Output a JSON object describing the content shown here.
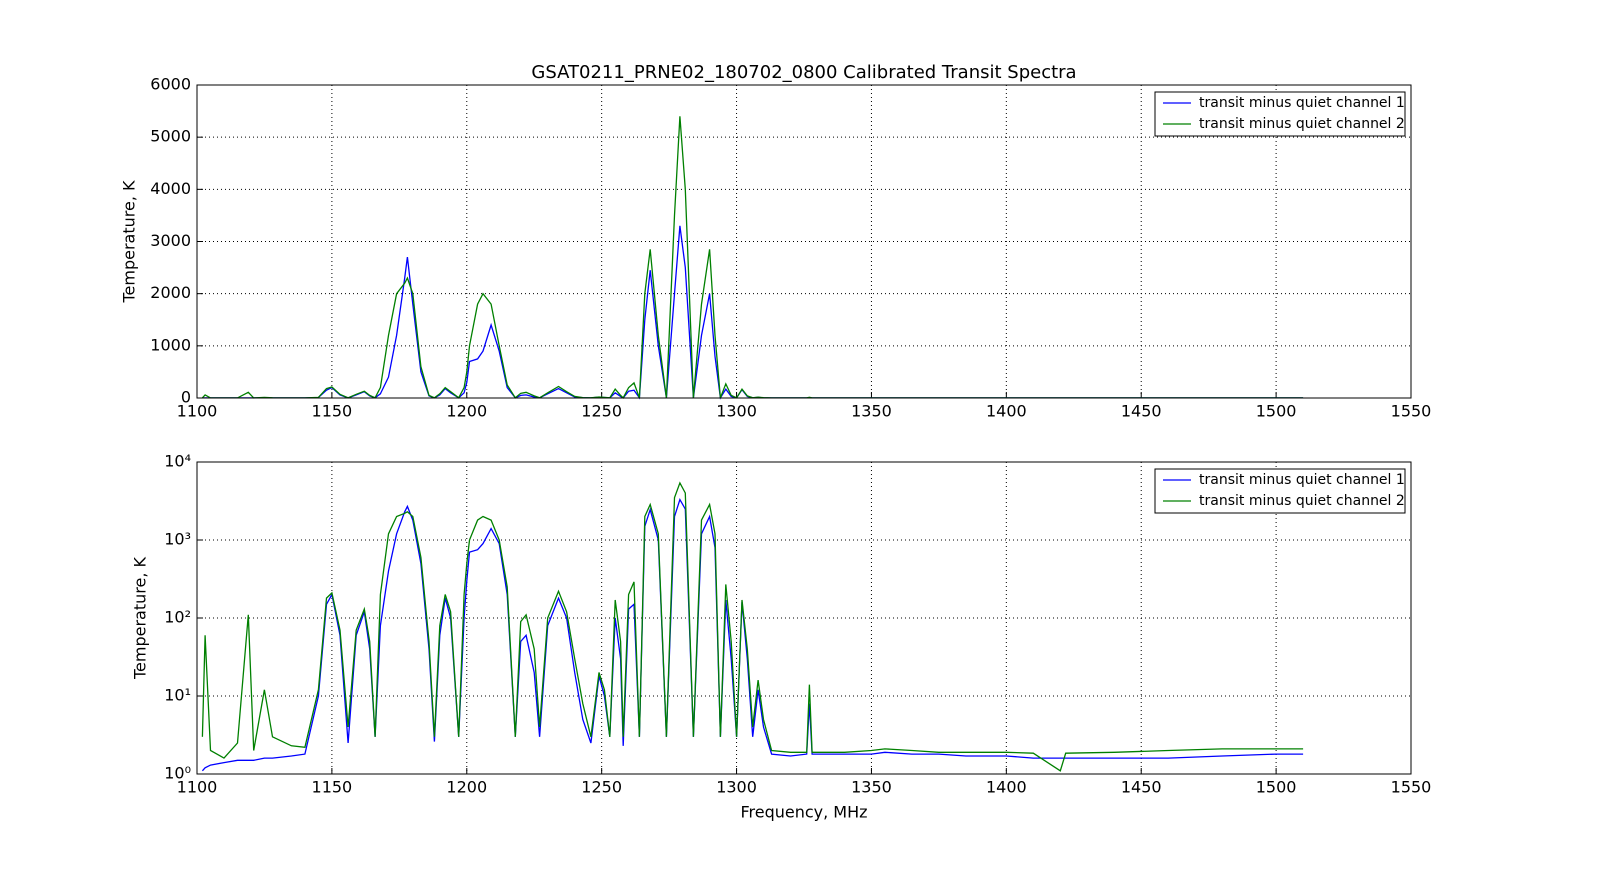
{
  "chart_data": [
    {
      "type": "line",
      "title": "GSAT0211_PRNE02_180702_0800 Calibrated Transit Spectra",
      "ylabel": "Temperature, K",
      "yscale": "linear",
      "grid": true,
      "legend": "upper right",
      "xlim": [
        1100,
        1550
      ],
      "xticks": [
        1100,
        1150,
        1200,
        1250,
        1300,
        1350,
        1400,
        1450,
        1500,
        1550
      ],
      "ylim": [
        0,
        6000
      ],
      "yticks": [
        0,
        1000,
        2000,
        3000,
        4000,
        5000,
        6000
      ],
      "x": [
        1102,
        1103,
        1105,
        1110,
        1115,
        1119,
        1121,
        1125,
        1128,
        1135,
        1140,
        1145,
        1148,
        1150,
        1153,
        1156,
        1159,
        1162,
        1164,
        1166,
        1168,
        1171,
        1174,
        1177,
        1178,
        1180,
        1183,
        1186,
        1188,
        1190,
        1192,
        1194,
        1197,
        1199,
        1200,
        1201,
        1204,
        1206,
        1209,
        1212,
        1215,
        1218,
        1220,
        1222,
        1225,
        1227,
        1230,
        1234,
        1237,
        1240,
        1243,
        1246,
        1249,
        1251,
        1253,
        1255,
        1257,
        1258,
        1260,
        1262,
        1264,
        1266,
        1268,
        1271,
        1274,
        1277,
        1279,
        1281,
        1284,
        1287,
        1290,
        1292,
        1294,
        1296,
        1298,
        1300,
        1302,
        1304,
        1306,
        1308,
        1310,
        1313,
        1320,
        1326,
        1327,
        1328,
        1340,
        1350,
        1355,
        1365,
        1375,
        1385,
        1400,
        1410,
        1420,
        1422,
        1440,
        1460,
        1480,
        1500,
        1510
      ],
      "series": [
        {
          "name": "transit minus quiet channel 1",
          "color": "#0000ff",
          "values": [
            1.1,
            1.2,
            1.3,
            1.4,
            1.5,
            1.5,
            1.5,
            1.6,
            1.6,
            1.7,
            1.8,
            10,
            150,
            200,
            60,
            2.5,
            60,
            120,
            40,
            3,
            80,
            400,
            1200,
            2300,
            2700,
            1800,
            500,
            40,
            2.6,
            60,
            180,
            100,
            3,
            100,
            300,
            700,
            750,
            900,
            1400,
            900,
            200,
            3,
            50,
            60,
            20,
            3,
            80,
            180,
            100,
            20,
            5,
            2.5,
            18,
            10,
            3,
            100,
            30,
            2.3,
            130,
            150,
            3,
            1500,
            2450,
            1000,
            3,
            2000,
            3300,
            2500,
            3,
            1200,
            2000,
            800,
            3,
            170,
            30,
            3,
            160,
            30,
            3,
            12,
            4,
            1.8,
            1.7,
            1.8,
            8,
            1.8,
            1.8,
            1.8,
            1.9,
            1.8,
            1.8,
            1.7,
            1.7,
            1.6,
            1.6,
            1.6,
            1.6,
            1.6,
            1.7,
            1.8,
            1.8
          ]
        },
        {
          "name": "transit minus quiet channel 2",
          "color": "#008000",
          "values": [
            3,
            60,
            2,
            1.6,
            2.5,
            110,
            2,
            12,
            3,
            2.3,
            2.2,
            12,
            180,
            210,
            70,
            4,
            70,
            130,
            50,
            3,
            200,
            1200,
            2000,
            2200,
            2300,
            2000,
            600,
            50,
            3,
            80,
            200,
            120,
            3,
            200,
            500,
            1000,
            1800,
            2000,
            1800,
            1000,
            250,
            3,
            90,
            110,
            40,
            4,
            100,
            220,
            120,
            30,
            8,
            3,
            20,
            12,
            3,
            170,
            50,
            3,
            200,
            290,
            3,
            2000,
            2850,
            1200,
            3,
            3500,
            5400,
            4000,
            3,
            1800,
            2850,
            1200,
            3,
            270,
            50,
            3,
            170,
            40,
            4,
            16,
            5,
            2,
            1.9,
            1.9,
            14,
            1.9,
            1.9,
            2,
            2.1,
            2,
            1.9,
            1.9,
            1.9,
            1.85,
            1.1,
            1.85,
            1.9,
            2,
            2.1,
            2.1,
            2.1
          ]
        }
      ]
    },
    {
      "type": "line",
      "xlabel": "Frequency, MHz",
      "ylabel": "Temperature, K",
      "yscale": "log",
      "grid": true,
      "legend": "upper right",
      "xlim": [
        1100,
        1550
      ],
      "xticks": [
        1100,
        1150,
        1200,
        1250,
        1300,
        1350,
        1400,
        1450,
        1500,
        1550
      ],
      "ylim": [
        1,
        10000
      ],
      "yticks": [
        {
          "value": 1,
          "label": "10⁰"
        },
        {
          "value": 10,
          "label": "10¹"
        },
        {
          "value": 100,
          "label": "10²"
        },
        {
          "value": 1000,
          "label": "10³"
        },
        {
          "value": 10000,
          "label": "10⁴"
        }
      ],
      "x": [
        1102,
        1103,
        1105,
        1110,
        1115,
        1119,
        1121,
        1125,
        1128,
        1135,
        1140,
        1145,
        1148,
        1150,
        1153,
        1156,
        1159,
        1162,
        1164,
        1166,
        1168,
        1171,
        1174,
        1177,
        1178,
        1180,
        1183,
        1186,
        1188,
        1190,
        1192,
        1194,
        1197,
        1199,
        1200,
        1201,
        1204,
        1206,
        1209,
        1212,
        1215,
        1218,
        1220,
        1222,
        1225,
        1227,
        1230,
        1234,
        1237,
        1240,
        1243,
        1246,
        1249,
        1251,
        1253,
        1255,
        1257,
        1258,
        1260,
        1262,
        1264,
        1266,
        1268,
        1271,
        1274,
        1277,
        1279,
        1281,
        1284,
        1287,
        1290,
        1292,
        1294,
        1296,
        1298,
        1300,
        1302,
        1304,
        1306,
        1308,
        1310,
        1313,
        1320,
        1326,
        1327,
        1328,
        1340,
        1350,
        1355,
        1365,
        1375,
        1385,
        1400,
        1410,
        1420,
        1422,
        1440,
        1460,
        1480,
        1500,
        1510
      ],
      "series": [
        {
          "name": "transit minus quiet channel 1",
          "color": "#0000ff",
          "values": [
            1.1,
            1.2,
            1.3,
            1.4,
            1.5,
            1.5,
            1.5,
            1.6,
            1.6,
            1.7,
            1.8,
            10,
            150,
            200,
            60,
            2.5,
            60,
            120,
            40,
            3,
            80,
            400,
            1200,
            2300,
            2700,
            1800,
            500,
            40,
            2.6,
            60,
            180,
            100,
            3,
            100,
            300,
            700,
            750,
            900,
            1400,
            900,
            200,
            3,
            50,
            60,
            20,
            3,
            80,
            180,
            100,
            20,
            5,
            2.5,
            18,
            10,
            3,
            100,
            30,
            2.3,
            130,
            150,
            3,
            1500,
            2450,
            1000,
            3,
            2000,
            3300,
            2500,
            3,
            1200,
            2000,
            800,
            3,
            170,
            30,
            3,
            160,
            30,
            3,
            12,
            4,
            1.8,
            1.7,
            1.8,
            8,
            1.8,
            1.8,
            1.8,
            1.9,
            1.8,
            1.8,
            1.7,
            1.7,
            1.6,
            1.6,
            1.6,
            1.6,
            1.6,
            1.7,
            1.8,
            1.8
          ]
        },
        {
          "name": "transit minus quiet channel 2",
          "color": "#008000",
          "values": [
            3,
            60,
            2,
            1.6,
            2.5,
            110,
            2,
            12,
            3,
            2.3,
            2.2,
            12,
            180,
            210,
            70,
            4,
            70,
            130,
            50,
            3,
            200,
            1200,
            2000,
            2200,
            2300,
            2000,
            600,
            50,
            3,
            80,
            200,
            120,
            3,
            200,
            500,
            1000,
            1800,
            2000,
            1800,
            1000,
            250,
            3,
            90,
            110,
            40,
            4,
            100,
            220,
            120,
            30,
            8,
            3,
            20,
            12,
            3,
            170,
            50,
            3,
            200,
            290,
            3,
            2000,
            2850,
            1200,
            3,
            3500,
            5400,
            4000,
            3,
            1800,
            2850,
            1200,
            3,
            270,
            50,
            3,
            170,
            40,
            4,
            16,
            5,
            2,
            1.9,
            1.9,
            14,
            1.9,
            1.9,
            2,
            2.1,
            2,
            1.9,
            1.9,
            1.9,
            1.85,
            1.1,
            1.85,
            1.9,
            2,
            2.1,
            2.1,
            2.1
          ]
        }
      ]
    }
  ]
}
